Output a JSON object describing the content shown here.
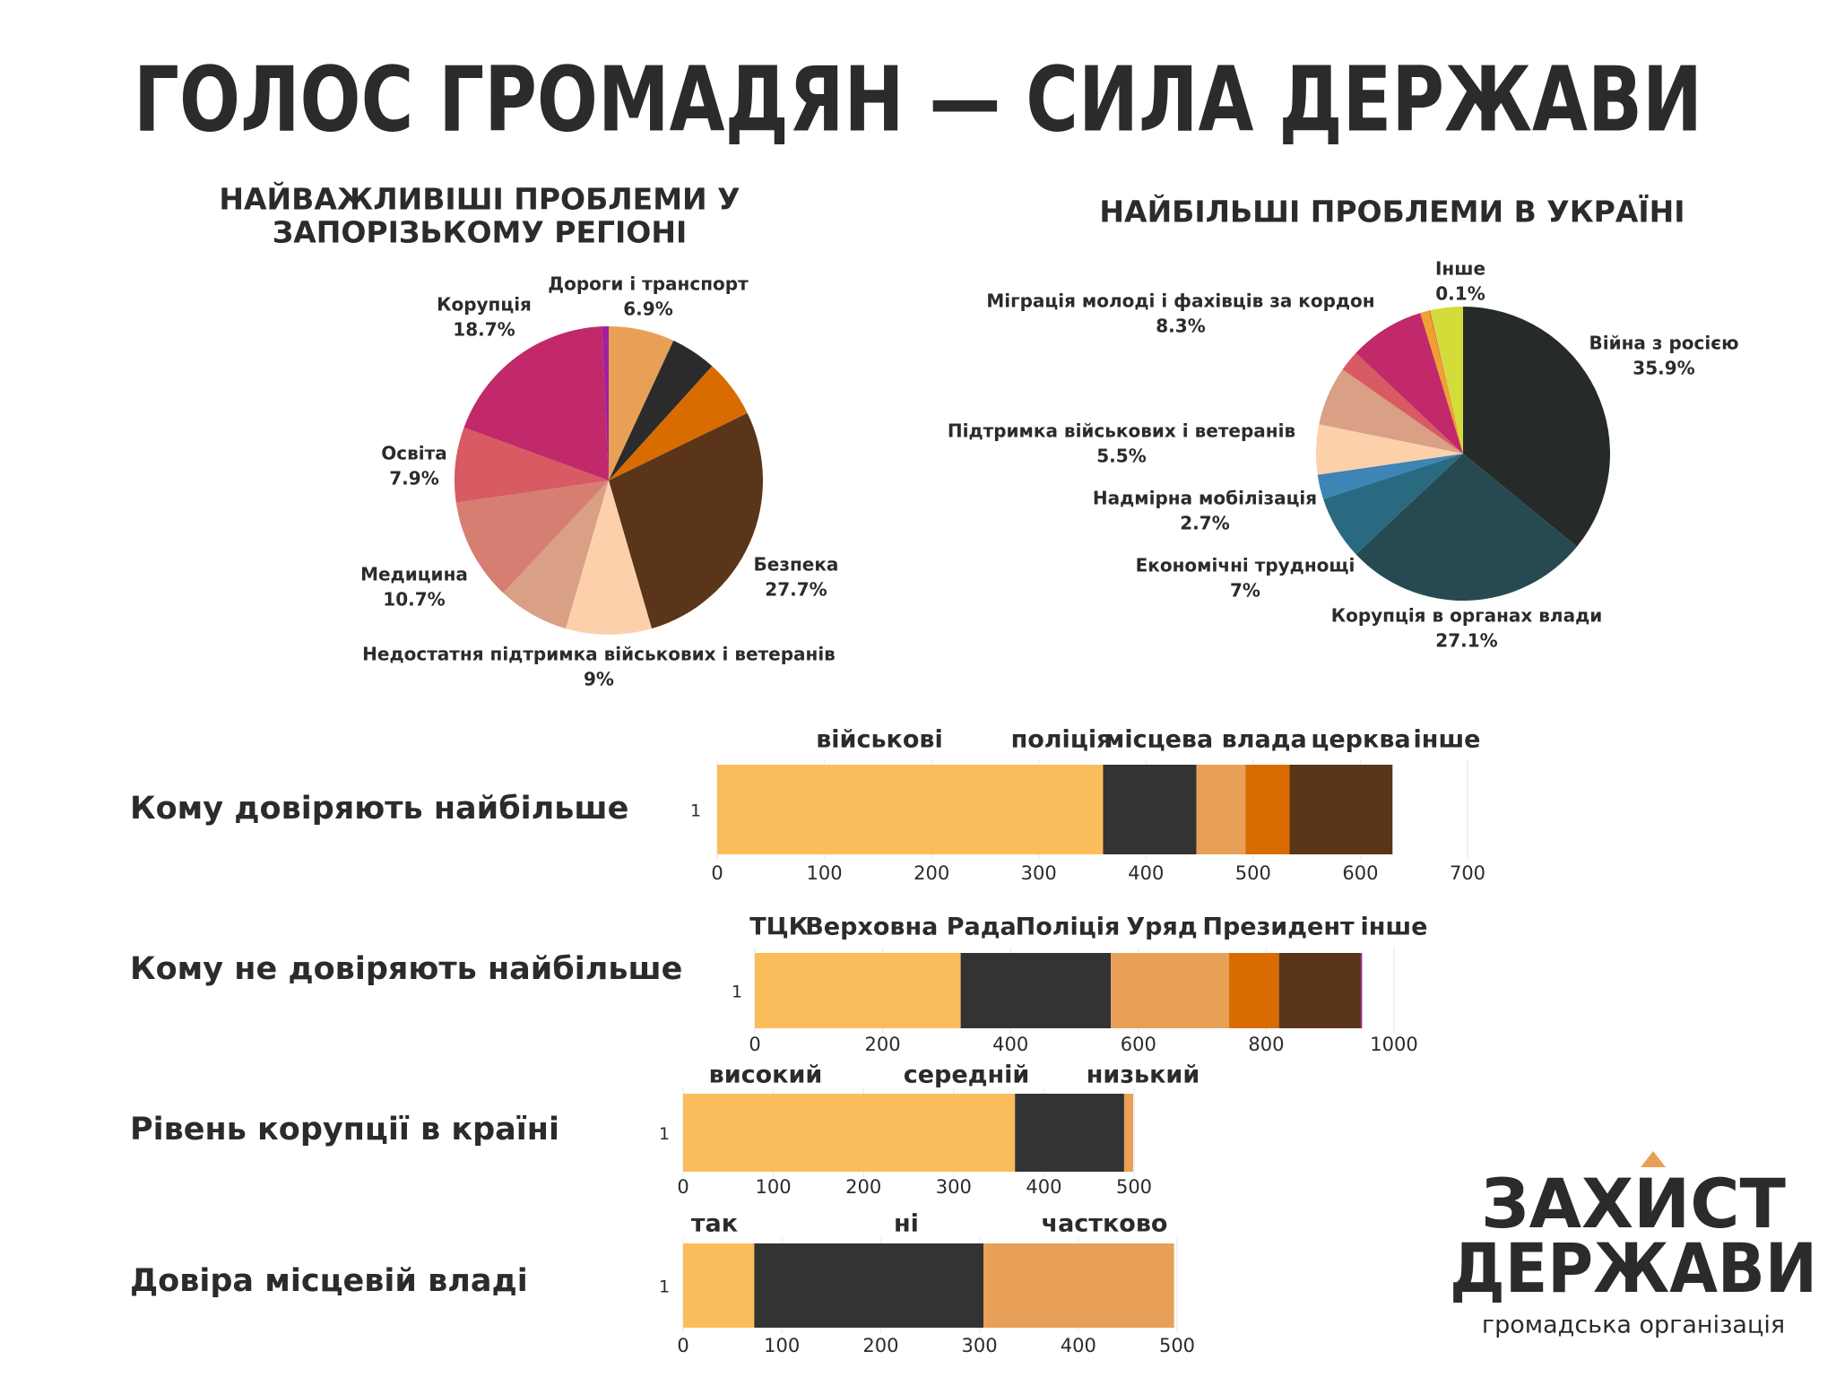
{
  "header": {
    "title": "ГОЛОС ГРОМАДЯН — СИЛА ДЕРЖАВИ"
  },
  "chart_data": [
    {
      "type": "pie",
      "title": [
        "НАЙВАЖЛИВІШІ ПРОБЛЕМИ У",
        "ЗАПОРІЗЬКОМУ РЕГІОНІ"
      ],
      "categories": [
        "Дороги і транспорт",
        null,
        null,
        "Безпека",
        "Недостатня підтримка військових і ветеранів",
        null,
        "Медицина",
        "Освіта",
        "Корупція",
        null
      ],
      "values": [
        6.9,
        4.8,
        6.1,
        27.7,
        9,
        7.5,
        10.7,
        7.9,
        18.7,
        0.7
      ],
      "value_labels": [
        "6.9%",
        null,
        null,
        "27.7%",
        "9%",
        null,
        "10.7%",
        "7.9%",
        "18.7%",
        null
      ],
      "colors": [
        "#e8a057",
        "#2b2b2b",
        "#d96c00",
        "#5a3519",
        "#fdd0ac",
        "#d9a085",
        "#d67e72",
        "#d85a62",
        "#c1296b",
        "#a020a0"
      ]
    },
    {
      "type": "pie",
      "title": "НАЙБІЛЬШІ ПРОБЛЕМИ В УКРАЇНІ",
      "categories": [
        "Війна з росією",
        "Корупція в органах влади",
        "Економічні труднощі",
        "Надмірна мобілізація",
        "Підтримка військових і ветеранів",
        null,
        null,
        "Міграція молоді і фахівців за кордон",
        null,
        "Інше",
        null
      ],
      "values": [
        35.9,
        27.1,
        7,
        2.7,
        5.5,
        6.5,
        2.3,
        8.3,
        1,
        0.1,
        3.6
      ],
      "value_labels": [
        "35.9%",
        "27.1%",
        "7%",
        "2.7%",
        "5.5%",
        null,
        null,
        "8.3%",
        null,
        "0.1%",
        null
      ],
      "colors": [
        "#262b29",
        "#274a52",
        "#2a6a80",
        "#3d85b5",
        "#fdd0ac",
        "#d9a085",
        "#d85a62",
        "#c1296b",
        "#f0a030",
        "#e05050",
        "#d4dc3a"
      ]
    },
    {
      "type": "bar",
      "orientation": "horizontal",
      "stacked": true,
      "title": "Кому довіряють найбільше",
      "categories": [
        "1"
      ],
      "series": [
        {
          "name": "військові",
          "color": "#fbbd5b",
          "values": [
            360
          ]
        },
        {
          "name": "поліція",
          "color": "#333333",
          "values": [
            87
          ]
        },
        {
          "name": "місцева влада",
          "color": "#e8a057",
          "values": [
            46
          ]
        },
        {
          "name": "церква",
          "color": "#d96c00",
          "values": [
            41
          ]
        },
        {
          "name": "інше",
          "color": "#5a3519",
          "values": [
            96
          ]
        }
      ],
      "xlim": [
        0,
        700
      ],
      "xticks": [
        0,
        100,
        200,
        300,
        400,
        500,
        600,
        700
      ]
    },
    {
      "type": "bar",
      "orientation": "horizontal",
      "stacked": true,
      "title": "Кому не довіряють найбільше",
      "categories": [
        "1"
      ],
      "series": [
        {
          "name": "ТЦК",
          "color": "#fbbd5b",
          "values": [
            322
          ]
        },
        {
          "name": "Верховна Рада",
          "color": "#333333",
          "values": [
            235
          ]
        },
        {
          "name": "Поліція",
          "color": "#e8a057",
          "values": [
            185
          ]
        },
        {
          "name": "Уряд",
          "color": "#d96c00",
          "values": [
            78
          ]
        },
        {
          "name": "Президент",
          "color": "#5a3519",
          "values": [
            128
          ]
        },
        {
          "name": "інше",
          "color": "#a020a0",
          "values": [
            2
          ]
        }
      ],
      "xlim": [
        0,
        1000
      ],
      "xticks": [
        0,
        200,
        400,
        600,
        800,
        1000
      ]
    },
    {
      "type": "bar",
      "orientation": "horizontal",
      "stacked": true,
      "title": "Рівень корупції в країні",
      "categories": [
        "1"
      ],
      "series": [
        {
          "name": "високий",
          "color": "#fbbd5b",
          "values": [
            368
          ]
        },
        {
          "name": "середній",
          "color": "#333333",
          "values": [
            121
          ]
        },
        {
          "name": "низький",
          "color": "#e8a057",
          "values": [
            10
          ]
        }
      ],
      "xlim": [
        0,
        500
      ],
      "xticks": [
        0,
        100,
        200,
        300,
        400,
        500
      ]
    },
    {
      "type": "bar",
      "orientation": "horizontal",
      "stacked": true,
      "title": "Довіра місцевій владі",
      "categories": [
        "1"
      ],
      "series": [
        {
          "name": "так",
          "color": "#fbbd5b",
          "values": [
            72
          ]
        },
        {
          "name": "ні",
          "color": "#333333",
          "values": [
            232
          ]
        },
        {
          "name": "частково",
          "color": "#e8a057",
          "values": [
            193
          ]
        }
      ],
      "xlim": [
        0,
        500
      ],
      "xticks": [
        0,
        100,
        200,
        300,
        400,
        500
      ]
    }
  ],
  "logo": {
    "line1": "ЗАХИСТ",
    "line2": "ДЕРЖАВИ",
    "subtitle": "громадська організація"
  }
}
